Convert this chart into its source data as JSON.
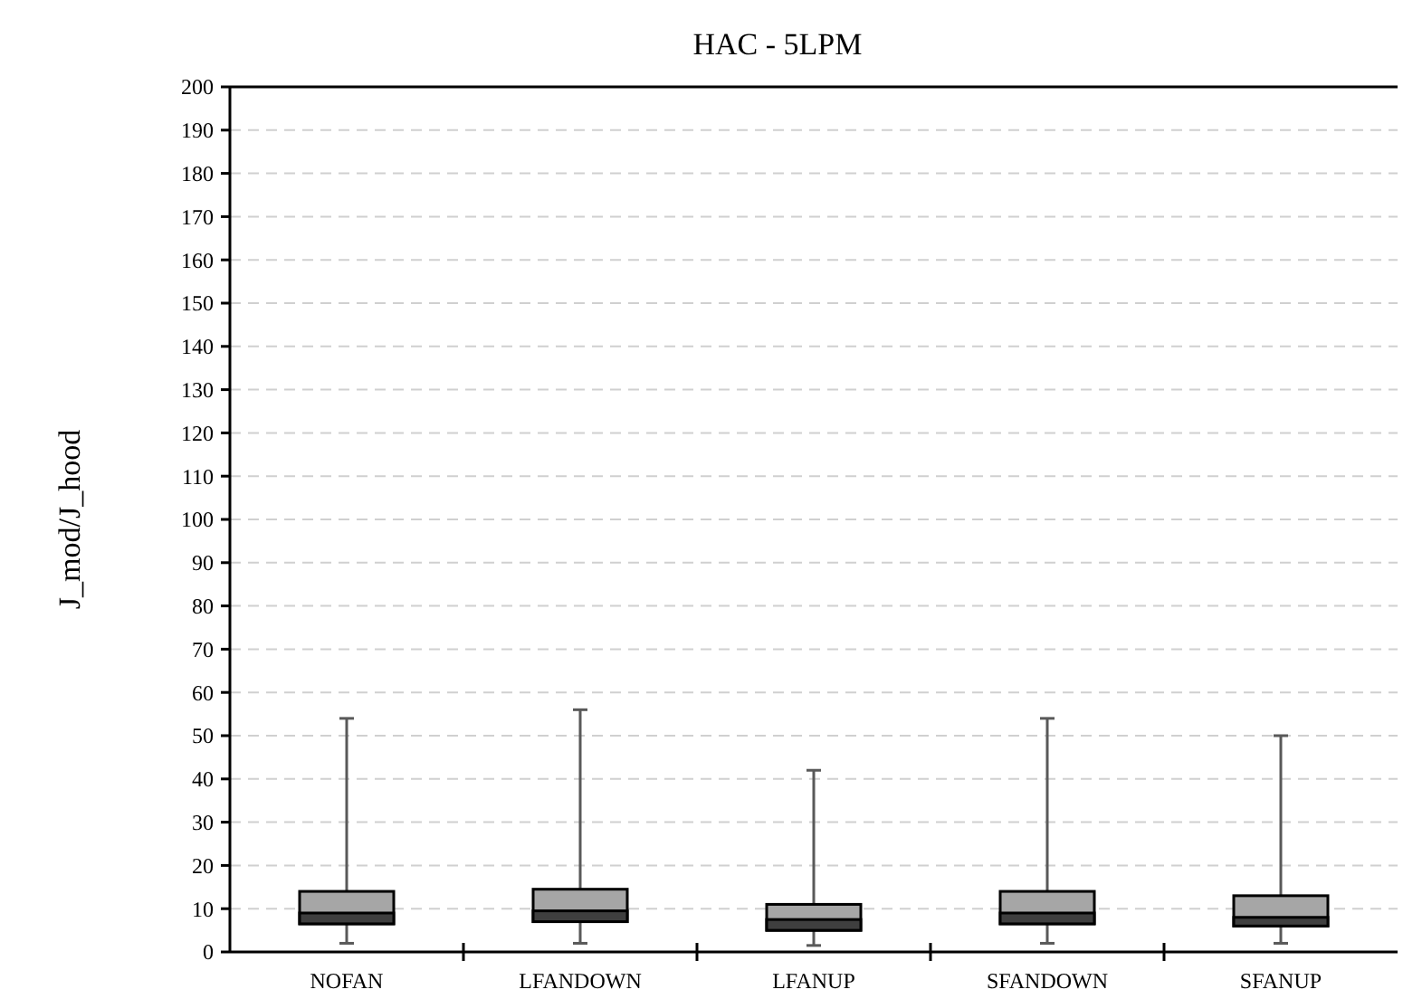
{
  "chart_data": {
    "type": "box",
    "title": "HAC - 5LPM",
    "ylabel": "J_mod/J_hood",
    "categories": [
      "NOFAN",
      "LFANDOWN",
      "LFANUP",
      "SFANDOWN",
      "SFANUP"
    ],
    "series": [
      {
        "color": "#a6a6a6",
        "boxes": [
          {
            "low": 2,
            "q1": 6.5,
            "median": 9,
            "q3": 14,
            "high": 54
          },
          {
            "low": 2,
            "q1": 7,
            "median": 9.5,
            "q3": 14.5,
            "high": 56
          },
          {
            "low": 1.5,
            "q1": 5,
            "median": 7.5,
            "q3": 11,
            "high": 42
          },
          {
            "low": 2,
            "q1": 6.5,
            "median": 9,
            "q3": 14,
            "high": 54
          },
          {
            "low": 2,
            "q1": 6,
            "median": 8,
            "q3": 13,
            "high": 50
          }
        ]
      }
    ],
    "ylim": [
      0,
      200
    ],
    "yticks": [
      0,
      10,
      20,
      30,
      40,
      50,
      60,
      70,
      80,
      90,
      100,
      110,
      120,
      130,
      140,
      150,
      160,
      170,
      180,
      190,
      200
    ],
    "grid": "y"
  }
}
